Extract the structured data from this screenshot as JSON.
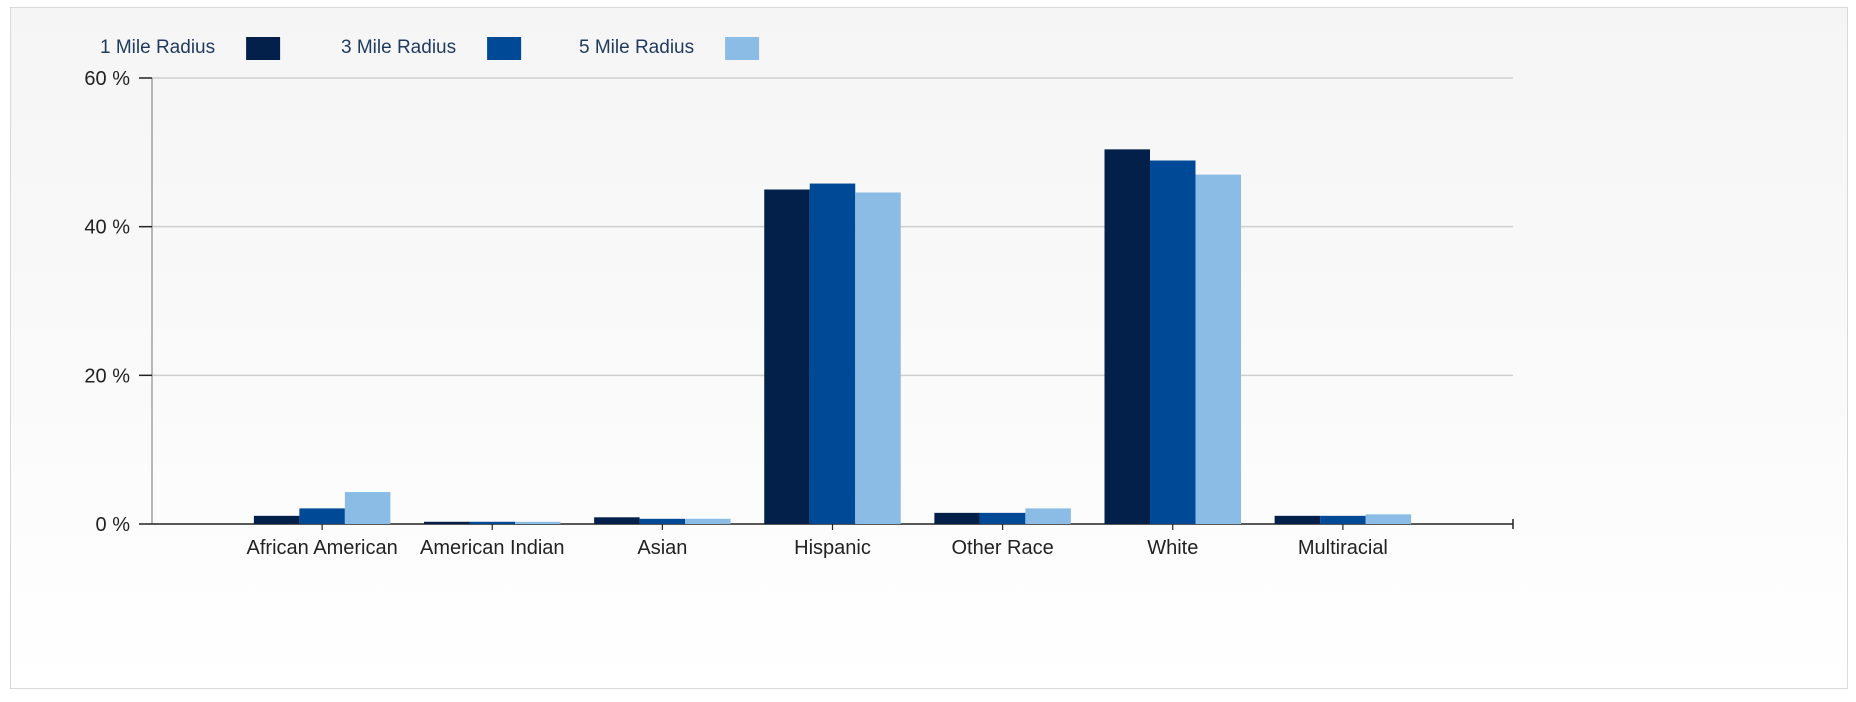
{
  "chart_data": {
    "type": "bar",
    "categories": [
      "African American",
      "American Indian",
      "Asian",
      "Hispanic",
      "Other Race",
      "White",
      "Multiracial"
    ],
    "series": [
      {
        "name": "1 Mile Radius",
        "color": "#03204a",
        "values": [
          1.1,
          0.3,
          0.9,
          45.0,
          1.5,
          50.4,
          1.1
        ]
      },
      {
        "name": "3 Mile Radius",
        "color": "#004996",
        "values": [
          2.1,
          0.3,
          0.7,
          45.8,
          1.5,
          48.9,
          1.1
        ]
      },
      {
        "name": "5 Mile Radius",
        "color": "#8bbce6",
        "values": [
          4.3,
          0.3,
          0.7,
          44.6,
          2.1,
          47.0,
          1.3
        ]
      }
    ],
    "ylim": [
      0,
      60
    ],
    "yticks": [
      0,
      20,
      40,
      60
    ],
    "ytick_labels": [
      "0 %",
      "20 %",
      "40 %",
      "60 %"
    ],
    "grid": true,
    "legend_position": "top-left"
  }
}
